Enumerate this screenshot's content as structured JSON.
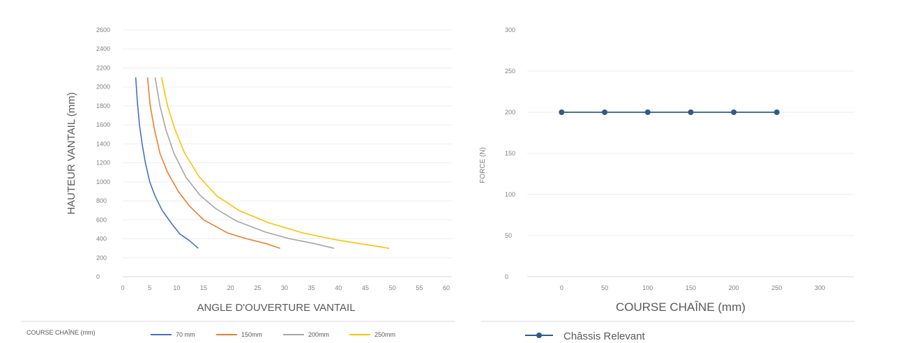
{
  "chart_data": [
    {
      "type": "line",
      "title": "",
      "xlabel": "ANGLE D'OUVERTURE VANTAIL",
      "ylabel": "HAUTEUR VANTAIL (mm)",
      "xlim": [
        0,
        60
      ],
      "ylim": [
        0,
        2600
      ],
      "xticks": [
        0,
        5,
        10,
        15,
        20,
        25,
        30,
        35,
        40,
        45,
        50,
        55,
        60
      ],
      "yticks": [
        0,
        200,
        400,
        600,
        800,
        1000,
        1200,
        1400,
        1600,
        1800,
        2000,
        2200,
        2400,
        2600
      ],
      "grid": true,
      "legend_title": "COURSE CHAÎNE (mm)",
      "legend_position": "bottom",
      "series": [
        {
          "name": "70 mm",
          "color": "#4472C4",
          "x": [
            2.4,
            2.7,
            3.1,
            3.6,
            4.2,
            5.0,
            6.0,
            7.3,
            9.2,
            10.6,
            12.4,
            14.0
          ],
          "y": [
            2100,
            1850,
            1600,
            1400,
            1200,
            1000,
            850,
            700,
            550,
            450,
            380,
            300
          ]
        },
        {
          "name": "150mm",
          "color": "#ED7D31",
          "x": [
            4.6,
            5.1,
            5.9,
            6.9,
            8.3,
            10.3,
            12.3,
            15.0,
            19.5,
            23.0,
            26.5,
            29.2
          ],
          "y": [
            2100,
            1800,
            1550,
            1300,
            1100,
            900,
            750,
            600,
            460,
            400,
            350,
            300
          ]
        },
        {
          "name": "200mm",
          "color": "#A5A5A5",
          "x": [
            6.0,
            6.9,
            8.0,
            9.5,
            11.7,
            14.3,
            17.2,
            21.0,
            26.5,
            31.0,
            35.5,
            39.2
          ],
          "y": [
            2100,
            1800,
            1550,
            1300,
            1050,
            860,
            720,
            590,
            470,
            400,
            350,
            300
          ]
        },
        {
          "name": "250mm",
          "color": "#FFC000",
          "x": [
            7.2,
            8.3,
            9.7,
            11.5,
            14.2,
            17.5,
            21.5,
            27.0,
            33.5,
            39.5,
            45.0,
            49.4
          ],
          "y": [
            2100,
            1800,
            1550,
            1300,
            1050,
            850,
            700,
            570,
            460,
            390,
            340,
            300
          ]
        }
      ]
    },
    {
      "type": "line",
      "title": "",
      "xlabel": "COURSE CHAÎNE (mm)",
      "ylabel": "FORCE (N)",
      "xlim": [
        -40,
        340
      ],
      "ylim": [
        0,
        300
      ],
      "xticks": [
        0,
        50,
        100,
        150,
        200,
        250,
        300
      ],
      "yticks": [
        0,
        50,
        100,
        150,
        200,
        250,
        300
      ],
      "grid": true,
      "legend_position": "bottom",
      "series": [
        {
          "name": "Châssis Relevant",
          "color": "#2E5C8A",
          "x": [
            0,
            50,
            100,
            150,
            200,
            250
          ],
          "y": [
            200,
            200,
            200,
            200,
            200,
            200
          ]
        }
      ]
    }
  ]
}
